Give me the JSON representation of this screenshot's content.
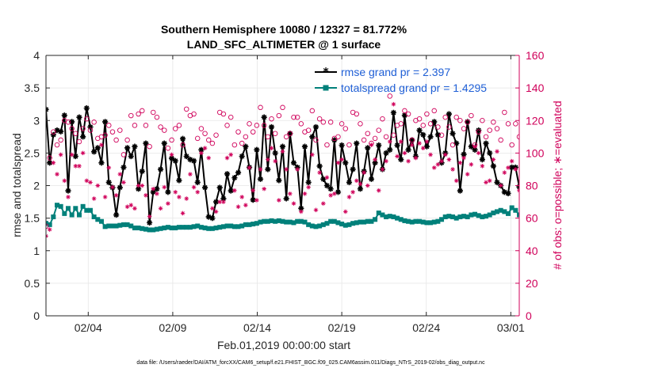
{
  "chart_data": {
    "type": "line",
    "title": [
      "Southern Hemisphere 10080 / 12327 = 81.772%",
      "LAND_SFC_ALTIMETER @ 1 surface"
    ],
    "xlabel": "Feb.01,2019 00:00:00 start",
    "ylabel": "rmse and totalspread",
    "ylabel_right": "# of obs: o=possible; ∗=evaluated",
    "x_range": [
      1,
      29
    ],
    "x_ticks": [
      3.5,
      8.5,
      13.5,
      18.5,
      23.5,
      28.5
    ],
    "x_tick_labels": [
      "02/04",
      "02/09",
      "02/14",
      "02/19",
      "02/24",
      "03/01"
    ],
    "ylim": [
      0,
      4
    ],
    "y_ticks": [
      0,
      0.5,
      1,
      1.5,
      2,
      2.5,
      3,
      3.5,
      4
    ],
    "y_tick_labels": [
      "0",
      "0.5",
      "1",
      "1.5",
      "2",
      "2.5",
      "3",
      "3.5",
      "4"
    ],
    "ylim_right": [
      0,
      160
    ],
    "y_ticks_right": [
      0,
      20,
      40,
      60,
      80,
      100,
      120,
      140,
      160
    ],
    "y_tick_labels_right": [
      "0",
      "20",
      "40",
      "60",
      "80",
      "100",
      "120",
      "140",
      "160"
    ],
    "grid": true,
    "legend_position": "top-right",
    "series": [
      {
        "name": "rmse grand pr = 2.397",
        "color": "#000000",
        "axis": "left",
        "marker": "asterisk",
        "values": [
          3.17,
          2.35,
          2.78,
          2.85,
          2.83,
          3.08,
          1.92,
          2.98,
          2.45,
          3.05,
          2.75,
          3.19,
          2.9,
          2.52,
          2.58,
          2.35,
          2.98,
          2.05,
          1.97,
          1.55,
          1.97,
          2.28,
          2.58,
          2.45,
          2.6,
          1.95,
          2.22,
          2.65,
          1.43,
          1.9,
          1.95,
          2.25,
          2.65,
          1.9,
          2.42,
          2.38,
          2.08,
          2.72,
          2.45,
          2.4,
          2.38,
          2.05,
          2.55,
          1.97,
          1.52,
          1.5,
          1.75,
          1.97,
          1.8,
          2.18,
          1.92,
          2.12,
          2.2,
          2.45,
          2.6,
          2.28,
          1.78,
          2.55,
          2.1,
          3.05,
          2.25,
          2.9,
          2.5,
          2.08,
          2.6,
          1.8,
          2.8,
          2.35,
          2.28,
          1.65,
          2.6,
          2.05,
          2.75,
          2.9,
          2.3,
          2.1,
          2.0,
          1.95,
          2.7,
          1.9,
          2.62,
          2.35,
          2.05,
          2.25,
          2.65,
          1.95,
          2.22,
          2.58,
          2.1,
          2.35,
          2.62,
          2.25,
          2.5,
          2.55,
          3.12,
          2.62,
          2.4,
          3.08,
          2.55,
          2.7,
          2.45,
          2.85,
          2.78,
          2.6,
          2.75,
          2.98,
          2.78,
          2.35,
          2.5,
          3.1,
          2.8,
          2.65,
          1.92,
          2.48,
          2.98,
          2.6,
          2.55,
          2.85,
          2.4,
          2.65,
          2.5,
          2.3,
          2.05,
          2.0,
          1.9,
          1.88,
          2.28,
          2.28,
          1.98
        ]
      },
      {
        "name": "totalspread grand pr = 1.4295",
        "color": "#00807a",
        "axis": "left",
        "marker": "square",
        "values": [
          1.42,
          1.4,
          1.52,
          1.7,
          1.68,
          1.57,
          1.65,
          1.55,
          1.65,
          1.55,
          1.68,
          1.62,
          1.62,
          1.52,
          1.48,
          1.45,
          1.37,
          1.38,
          1.38,
          1.38,
          1.39,
          1.4,
          1.4,
          1.38,
          1.35,
          1.35,
          1.34,
          1.33,
          1.32,
          1.32,
          1.33,
          1.34,
          1.35,
          1.36,
          1.35,
          1.35,
          1.36,
          1.36,
          1.36,
          1.36,
          1.37,
          1.38,
          1.36,
          1.35,
          1.34,
          1.34,
          1.35,
          1.36,
          1.37,
          1.38,
          1.38,
          1.37,
          1.37,
          1.38,
          1.4,
          1.4,
          1.41,
          1.42,
          1.44,
          1.45,
          1.45,
          1.46,
          1.45,
          1.46,
          1.45,
          1.44,
          1.44,
          1.43,
          1.45,
          1.45,
          1.44,
          1.4,
          1.38,
          1.37,
          1.38,
          1.4,
          1.42,
          1.45,
          1.45,
          1.43,
          1.41,
          1.39,
          1.4,
          1.42,
          1.43,
          1.44,
          1.44,
          1.45,
          1.45,
          1.48,
          1.58,
          1.55,
          1.52,
          1.53,
          1.52,
          1.5,
          1.48,
          1.46,
          1.45,
          1.44,
          1.45,
          1.45,
          1.44,
          1.43,
          1.43,
          1.44,
          1.45,
          1.48,
          1.52,
          1.53,
          1.52,
          1.5,
          1.52,
          1.53,
          1.52,
          1.55,
          1.56,
          1.54,
          1.52,
          1.53,
          1.55,
          1.58,
          1.6,
          1.62,
          1.6,
          1.57,
          1.66,
          1.62,
          1.55
        ]
      },
      {
        "name": "# of obs possible",
        "color": "#d0005a",
        "axis": "right",
        "marker": "circle",
        "values": [
          55,
          97,
          113,
          105,
          108,
          120,
          119,
          115,
          112,
          107,
          115,
          121,
          114,
          119,
          109,
          110,
          111,
          117,
          113,
          108,
          114,
          99,
          108,
          123,
          117,
          124,
          126,
          117,
          104,
          125,
          122,
          116,
          114,
          103,
          108,
          115,
          117,
          105,
          127,
          123,
          124,
          109,
          115,
          112,
          108,
          106,
          111,
          125,
          124,
          117,
          122,
          105,
          113,
          106,
          110,
          118,
          113,
          117,
          128,
          117,
          110,
          121,
          112,
          123,
          128,
          110,
          112,
          122,
          122,
          118,
          113,
          114,
          126,
          108,
          121,
          119,
          105,
          119,
          109,
          110,
          118,
          115,
          105,
          125,
          124,
          118,
          108,
          112,
          106,
          109,
          114,
          121,
          110,
          135,
          111,
          117,
          118,
          126,
          124,
          108,
          120,
          121,
          117,
          124,
          118,
          126,
          116,
          111,
          122,
          116,
          105,
          122,
          120,
          115,
          119,
          123,
          105,
          113,
          120,
          110,
          114,
          119,
          115,
          108,
          125,
          118,
          105,
          118,
          110
        ]
      },
      {
        "name": "# of obs evaluated",
        "color": "#d0005a",
        "axis": "right",
        "marker": "asterisk",
        "values": [
          49,
          53,
          94,
          87,
          99,
          83,
          73,
          99,
          92,
          92,
          100,
          83,
          82,
          72,
          80,
          105,
          73,
          91,
          79,
          74,
          87,
          82,
          67,
          68,
          66,
          80,
          80,
          74,
          61,
          78,
          75,
          66,
          79,
          69,
          99,
          76,
          73,
          63,
          72,
          87,
          79,
          76,
          100,
          103,
          97,
          66,
          64,
          70,
          70,
          97,
          99,
          77,
          67,
          73,
          68,
          91,
          77,
          71,
          90,
          78,
          96,
          103,
          95,
          71,
          101,
          90,
          75,
          69,
          90,
          64,
          75,
          79,
          99,
          65,
          88,
          69,
          85,
          74,
          75,
          94,
          96,
          64,
          73,
          76,
          83,
          81,
          88,
          80,
          105,
          96,
          77,
          90,
          95,
          107,
          130,
          98,
          107,
          100,
          95,
          105,
          97,
          106,
          103,
          107,
          99,
          91,
          93,
          95,
          99,
          96,
          90,
          83,
          94,
          97,
          87,
          93,
          104,
          100,
          92,
          82,
          83,
          96,
          101,
          80,
          88,
          91,
          95,
          90,
          77
        ]
      }
    ]
  },
  "footnote": "data file: /Users/raeder/DAI/ATM_forcXX/CAM6_setup/f.e21.FHIST_BGC.f09_025.CAM6assim.011/Diags_NTrS_2019-02/obs_diag_output.nc"
}
